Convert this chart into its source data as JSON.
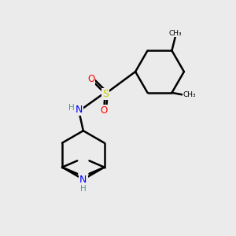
{
  "bg_color": "#ebebeb",
  "atom_colors": {
    "C": "#000000",
    "H": "#4a9a9a",
    "N": "#0000ff",
    "O": "#ff0000",
    "S": "#cccc00"
  },
  "bond_color": "#000000",
  "bond_width": 1.8,
  "figsize": [
    3.0,
    3.0
  ],
  "dpi": 100
}
